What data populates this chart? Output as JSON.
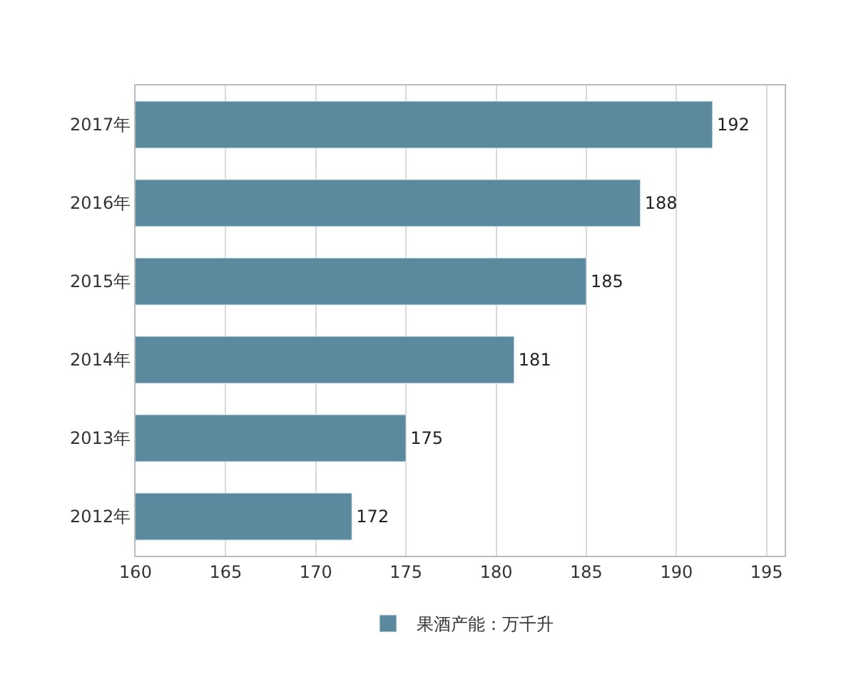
{
  "chart_data": {
    "type": "bar",
    "orientation": "horizontal",
    "categories": [
      "2017年",
      "2016年",
      "2015年",
      "2014年",
      "2013年",
      "2012年"
    ],
    "series": [
      {
        "name": "果酒产能：万千升",
        "color": "#5b8a9e",
        "values": [
          192,
          188,
          185,
          181,
          175,
          172
        ]
      }
    ],
    "xlim": [
      160,
      196
    ],
    "xticks": [
      160,
      165,
      170,
      175,
      180,
      185,
      190,
      195
    ],
    "grid": "x",
    "legend": "bottom",
    "data_labels": true
  }
}
